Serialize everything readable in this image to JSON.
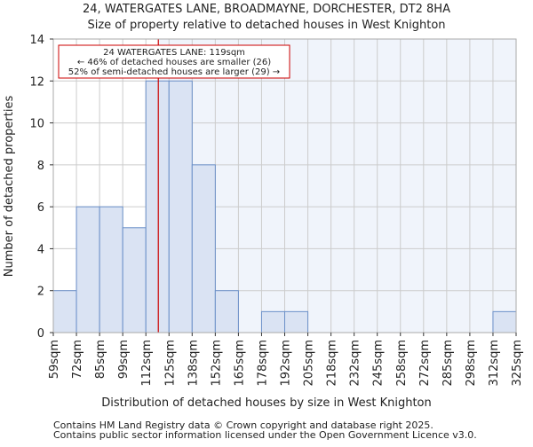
{
  "chart_data": {
    "type": "bar",
    "title": "24, WATERGATES LANE, BROADMAYNE, DORCHESTER, DT2 8HA",
    "subtitle": "Size of property relative to detached houses in West Knighton",
    "xlabel": "Distribution of detached houses by size in West Knighton",
    "ylabel": "Number of detached properties",
    "bin_edges": [
      59,
      72,
      85,
      99,
      112,
      125,
      138,
      152,
      165,
      178,
      192,
      205,
      218,
      232,
      245,
      258,
      272,
      285,
      298,
      312,
      325
    ],
    "tick_labels": [
      "59sqm",
      "72sqm",
      "85sqm",
      "99sqm",
      "112sqm",
      "125sqm",
      "138sqm",
      "152sqm",
      "165sqm",
      "178sqm",
      "192sqm",
      "205sqm",
      "218sqm",
      "232sqm",
      "245sqm",
      "258sqm",
      "272sqm",
      "285sqm",
      "298sqm",
      "312sqm",
      "325sqm"
    ],
    "values": [
      2,
      6,
      6,
      5,
      12,
      12,
      8,
      2,
      0,
      1,
      1,
      0,
      0,
      0,
      0,
      0,
      0,
      0,
      0,
      1
    ],
    "ylim": [
      0,
      14
    ],
    "yticks": [
      0,
      2,
      4,
      6,
      8,
      10,
      12,
      14
    ],
    "grid": true,
    "marker_value": 119,
    "annotation": [
      "24 WATERGATES LANE: 119sqm",
      "← 46% of detached houses are smaller (26)",
      "52% of semi-detached houses are larger (29) →"
    ],
    "colors": {
      "bar": "#dae3f3",
      "edge": "#6a8fc8",
      "marker": "#cc0000",
      "right_bg": "#f0f4fb"
    }
  },
  "footer": [
    "Contains HM Land Registry data © Crown copyright and database right 2025.",
    "Contains public sector information licensed under the Open Government Licence v3.0."
  ]
}
